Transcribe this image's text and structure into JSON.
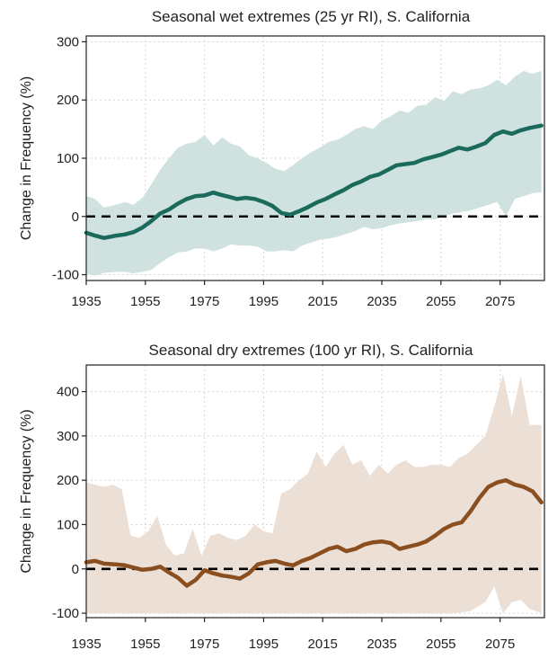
{
  "chart_data": [
    {
      "type": "line",
      "title": "Seasonal wet extremes (25 yr RI), S. California",
      "ylabel": "Change in Frequency (%)",
      "xlabel": "",
      "xlim": [
        1935,
        2090
      ],
      "ylim": [
        -110,
        310
      ],
      "x_ticks": [
        1935,
        1955,
        1975,
        1995,
        2015,
        2035,
        2055,
        2075
      ],
      "y_ticks": [
        -100,
        0,
        100,
        200,
        300
      ],
      "y_tick_labels": [
        "-100",
        "0",
        "100",
        "200",
        "300"
      ],
      "line_color": "#1a6b5c",
      "band_color": "#cfe2e0",
      "series": [
        {
          "name": "mean",
          "x": [
            1935,
            1938,
            1941,
            1945,
            1948,
            1951,
            1954,
            1957,
            1960,
            1963,
            1966,
            1969,
            1972,
            1975,
            1978,
            1980,
            1983,
            1986,
            1989,
            1992,
            1995,
            1998,
            2001,
            2004,
            2007,
            2010,
            2013,
            2016,
            2019,
            2022,
            2025,
            2028,
            2031,
            2034,
            2037,
            2040,
            2043,
            2046,
            2049,
            2052,
            2055,
            2058,
            2061,
            2064,
            2067,
            2070,
            2073,
            2076,
            2079,
            2082,
            2085,
            2089
          ],
          "values": [
            -28,
            -33,
            -37,
            -33,
            -31,
            -27,
            -19,
            -8,
            5,
            12,
            22,
            30,
            35,
            36,
            41,
            38,
            34,
            30,
            32,
            30,
            25,
            18,
            6,
            3,
            9,
            16,
            24,
            30,
            38,
            45,
            54,
            60,
            68,
            72,
            80,
            88,
            90,
            92,
            98,
            102,
            106,
            112,
            118,
            115,
            120,
            126,
            140,
            146,
            142,
            148,
            152,
            156
          ]
        },
        {
          "name": "range_upper",
          "x": [
            1935,
            1938,
            1941,
            1945,
            1948,
            1951,
            1954,
            1957,
            1960,
            1963,
            1966,
            1969,
            1972,
            1975,
            1978,
            1981,
            1984,
            1987,
            1990,
            1993,
            1996,
            1999,
            2002,
            2005,
            2008,
            2011,
            2014,
            2017,
            2020,
            2023,
            2026,
            2029,
            2032,
            2035,
            2038,
            2041,
            2044,
            2047,
            2050,
            2053,
            2056,
            2059,
            2062,
            2065,
            2068,
            2071,
            2074,
            2077,
            2080,
            2083,
            2086,
            2089
          ],
          "values": [
            35,
            30,
            15,
            20,
            25,
            20,
            32,
            55,
            80,
            100,
            118,
            125,
            128,
            140,
            122,
            136,
            125,
            120,
            105,
            100,
            92,
            82,
            78,
            88,
            100,
            110,
            118,
            128,
            132,
            140,
            150,
            155,
            150,
            165,
            172,
            182,
            178,
            190,
            192,
            205,
            198,
            215,
            210,
            218,
            220,
            225,
            235,
            225,
            240,
            250,
            245,
            250
          ]
        },
        {
          "name": "range_lower",
          "x": [
            1935,
            1938,
            1941,
            1945,
            1948,
            1951,
            1954,
            1957,
            1960,
            1963,
            1966,
            1969,
            1972,
            1975,
            1978,
            1981,
            1984,
            1987,
            1990,
            1993,
            1996,
            1999,
            2002,
            2005,
            2008,
            2011,
            2014,
            2017,
            2020,
            2023,
            2026,
            2029,
            2032,
            2035,
            2038,
            2041,
            2044,
            2047,
            2050,
            2053,
            2056,
            2059,
            2062,
            2065,
            2068,
            2071,
            2074,
            2077,
            2080,
            2083,
            2086,
            2089
          ],
          "values": [
            -98,
            -102,
            -97,
            -95,
            -95,
            -98,
            -95,
            -92,
            -80,
            -70,
            -62,
            -60,
            -55,
            -55,
            -60,
            -55,
            -48,
            -50,
            -50,
            -52,
            -60,
            -60,
            -58,
            -60,
            -50,
            -45,
            -40,
            -38,
            -35,
            -30,
            -25,
            -18,
            -22,
            -20,
            -15,
            -12,
            -10,
            -8,
            -5,
            -5,
            0,
            5,
            8,
            10,
            15,
            20,
            25,
            0,
            30,
            35,
            40,
            42
          ]
        }
      ]
    },
    {
      "type": "line",
      "title": "Seasonal dry extremes (100 yr RI), S. California",
      "ylabel": "Change in Frequency (%)",
      "xlabel": "",
      "xlim": [
        1935,
        2090
      ],
      "ylim": [
        -110,
        460
      ],
      "x_ticks": [
        1935,
        1955,
        1975,
        1995,
        2015,
        2035,
        2055,
        2075
      ],
      "y_ticks": [
        -100,
        0,
        100,
        200,
        300,
        400
      ],
      "y_tick_labels": [
        "-100",
        "0",
        "100",
        "200",
        "300",
        "400"
      ],
      "line_color": "#8b4e1e",
      "band_color": "#ecdfd6",
      "series": [
        {
          "name": "mean",
          "x": [
            1935,
            1938,
            1941,
            1945,
            1948,
            1951,
            1954,
            1957,
            1960,
            1963,
            1966,
            1969,
            1972,
            1975,
            1978,
            1981,
            1984,
            1987,
            1990,
            1993,
            1996,
            1999,
            2002,
            2005,
            2008,
            2011,
            2014,
            2017,
            2020,
            2023,
            2026,
            2029,
            2032,
            2035,
            2038,
            2041,
            2044,
            2047,
            2050,
            2053,
            2056,
            2059,
            2062,
            2065,
            2068,
            2071,
            2074,
            2077,
            2080,
            2083,
            2086,
            2089
          ],
          "values": [
            15,
            18,
            12,
            10,
            8,
            3,
            -2,
            0,
            5,
            -8,
            -20,
            -38,
            -25,
            -3,
            -10,
            -15,
            -18,
            -22,
            -10,
            10,
            15,
            18,
            12,
            8,
            18,
            25,
            35,
            45,
            50,
            40,
            45,
            55,
            60,
            62,
            58,
            45,
            50,
            55,
            62,
            75,
            90,
            100,
            105,
            130,
            160,
            185,
            195,
            200,
            190,
            185,
            175,
            150
          ]
        },
        {
          "name": "range_upper",
          "x": [
            1935,
            1938,
            1941,
            1944,
            1947,
            1950,
            1953,
            1956,
            1959,
            1962,
            1965,
            1968,
            1971,
            1974,
            1977,
            1980,
            1983,
            1986,
            1989,
            1992,
            1995,
            1998,
            2001,
            2004,
            2007,
            2010,
            2013,
            2016,
            2019,
            2022,
            2025,
            2028,
            2031,
            2034,
            2037,
            2040,
            2043,
            2046,
            2049,
            2052,
            2055,
            2058,
            2061,
            2064,
            2067,
            2070,
            2073,
            2076,
            2079,
            2082,
            2085,
            2089
          ],
          "values": [
            195,
            190,
            185,
            190,
            180,
            75,
            70,
            85,
            120,
            55,
            30,
            35,
            90,
            30,
            75,
            80,
            70,
            65,
            75,
            100,
            85,
            80,
            170,
            180,
            200,
            215,
            265,
            230,
            260,
            280,
            235,
            245,
            210,
            235,
            215,
            235,
            245,
            230,
            230,
            235,
            235,
            230,
            250,
            260,
            280,
            300,
            365,
            440,
            345,
            435,
            325,
            325
          ]
        },
        {
          "name": "range_lower",
          "x": [
            1935,
            1940,
            1945,
            1950,
            1955,
            1960,
            1965,
            1970,
            1975,
            1980,
            1985,
            1990,
            1995,
            2000,
            2005,
            2010,
            2015,
            2020,
            2025,
            2030,
            2035,
            2040,
            2045,
            2050,
            2055,
            2060,
            2065,
            2070,
            2073,
            2076,
            2079,
            2082,
            2085,
            2089
          ],
          "values": [
            -100,
            -100,
            -100,
            -100,
            -100,
            -100,
            -100,
            -100,
            -100,
            -100,
            -100,
            -100,
            -100,
            -100,
            -100,
            -100,
            -100,
            -100,
            -100,
            -100,
            -100,
            -100,
            -100,
            -100,
            -100,
            -100,
            -95,
            -75,
            -40,
            -100,
            -75,
            -70,
            -90,
            -100
          ]
        }
      ]
    }
  ]
}
